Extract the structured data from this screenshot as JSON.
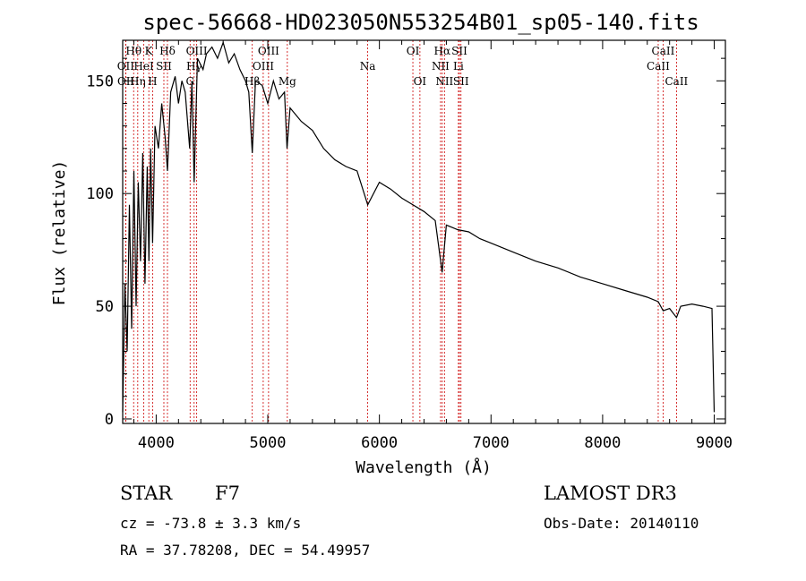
{
  "chart_data": {
    "type": "line",
    "title": "spec-56668-HD023050N553254B01_sp05-140.fits",
    "xlabel": "Wavelength (Å)",
    "ylabel": "Flux (relative)",
    "xlim": [
      3700,
      9100
    ],
    "ylim": [
      -2,
      168
    ],
    "x_ticks": [
      "4000",
      "5000",
      "6000",
      "7000",
      "8000",
      "9000"
    ],
    "y_ticks": [
      "0",
      "50",
      "100",
      "150"
    ],
    "grid": false,
    "legend": "none",
    "series": [
      {
        "color": "#000000",
        "x": [
          3700,
          3720,
          3740,
          3760,
          3780,
          3800,
          3820,
          3840,
          3860,
          3880,
          3900,
          3920,
          3935,
          3950,
          3968,
          3990,
          4020,
          4050,
          4080,
          4101,
          4130,
          4170,
          4200,
          4230,
          4260,
          4300,
          4320,
          4340,
          4370,
          4420,
          4450,
          4500,
          4550,
          4600,
          4650,
          4700,
          4750,
          4800,
          4830,
          4861,
          4890,
          4950,
          5000,
          5050,
          5100,
          5150,
          5172,
          5200,
          5300,
          5400,
          5500,
          5600,
          5700,
          5800,
          5895,
          6000,
          6100,
          6200,
          6300,
          6400,
          6500,
          6562,
          6600,
          6700,
          6800,
          6900,
          7000,
          7200,
          7400,
          7600,
          7800,
          8000,
          8200,
          8400,
          8498,
          8542,
          8600,
          8662,
          8700,
          8800,
          8900,
          8980,
          9000
        ],
        "values": [
          3,
          60,
          30,
          95,
          40,
          110,
          50,
          105,
          70,
          118,
          60,
          112,
          70,
          120,
          78,
          130,
          120,
          140,
          125,
          110,
          145,
          152,
          140,
          150,
          145,
          120,
          150,
          105,
          160,
          155,
          162,
          165,
          160,
          167,
          158,
          162,
          155,
          150,
          145,
          118,
          150,
          148,
          140,
          150,
          142,
          145,
          120,
          138,
          132,
          128,
          120,
          115,
          112,
          110,
          95,
          105,
          102,
          98,
          95,
          92,
          88,
          65,
          86,
          84,
          83,
          80,
          78,
          74,
          70,
          67,
          63,
          60,
          57,
          54,
          52,
          48,
          49,
          45,
          50,
          51,
          50,
          49,
          3
        ]
      }
    ],
    "spectral_lines": [
      {
        "label": "Hθ",
        "wavelength": 3798,
        "row": 1
      },
      {
        "label": "OII",
        "wavelength": 3727,
        "row": 2
      },
      {
        "label": "OII",
        "wavelength": 3729,
        "row": 3
      },
      {
        "label": "HeI",
        "wavelength": 3889,
        "row": 2
      },
      {
        "label": "Hη",
        "wavelength": 3835,
        "row": 3
      },
      {
        "label": "K",
        "wavelength": 3934,
        "row": 1
      },
      {
        "label": "SII",
        "wavelength": 4069,
        "row": 2
      },
      {
        "label": "H",
        "wavelength": 3968,
        "row": 3
      },
      {
        "label": "Hδ",
        "wavelength": 4101,
        "row": 1
      },
      {
        "label": "OIII",
        "wavelength": 4363,
        "row": 1
      },
      {
        "label": "Hγ",
        "wavelength": 4340,
        "row": 2
      },
      {
        "label": "G",
        "wavelength": 4304,
        "row": 3
      },
      {
        "label": "Hβ",
        "wavelength": 4861,
        "row": 3
      },
      {
        "label": "OIII",
        "wavelength": 5007,
        "row": 1
      },
      {
        "label": "OIII",
        "wavelength": 4959,
        "row": 2
      },
      {
        "label": "Mg",
        "wavelength": 5175,
        "row": 3
      },
      {
        "label": "Na",
        "wavelength": 5895,
        "row": 2
      },
      {
        "label": "OI",
        "wavelength": 6300,
        "row": 1
      },
      {
        "label": "OI",
        "wavelength": 6363,
        "row": 3
      },
      {
        "label": "Hα",
        "wavelength": 6563,
        "row": 1
      },
      {
        "label": "NII",
        "wavelength": 6548,
        "row": 2
      },
      {
        "label": "NII",
        "wavelength": 6583,
        "row": 3
      },
      {
        "label": "SII",
        "wavelength": 6717,
        "row": 1
      },
      {
        "label": "Li",
        "wavelength": 6708,
        "row": 2
      },
      {
        "label": "SII",
        "wavelength": 6731,
        "row": 3
      },
      {
        "label": "CaII",
        "wavelength": 8542,
        "row": 1
      },
      {
        "label": "CaII",
        "wavelength": 8498,
        "row": 2
      },
      {
        "label": "CaII",
        "wavelength": 8662,
        "row": 3
      }
    ]
  },
  "info": {
    "object_class": "STAR",
    "subclass": "F7",
    "survey": "LAMOST DR3",
    "redshift": "cz = -73.8 ± 3.3 km/s",
    "obs_date": "Obs-Date: 20140110",
    "coords": "RA =  37.78208, DEC =  54.49957"
  },
  "colors": {
    "spectrum": "#000000",
    "line_markers": "#cc0000"
  }
}
